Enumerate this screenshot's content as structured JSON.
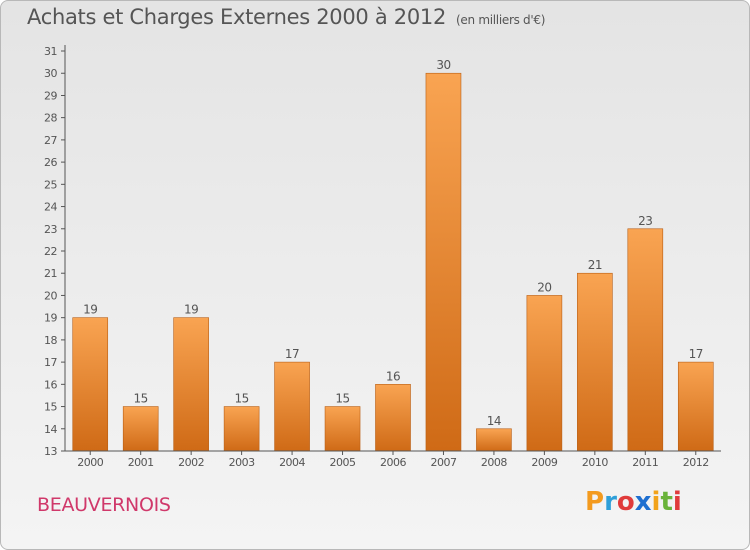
{
  "title": "Achats et Charges Externes 2000 à 2012",
  "unit": "(en milliers d'€)",
  "place": "BEAUVERNOIS",
  "logo": {
    "letters": [
      "P",
      "r",
      "o",
      "x",
      "i",
      "t",
      "i"
    ],
    "colors": [
      "#f39a1e",
      "#2e9fd9",
      "#e03b3b",
      "#1e6fd0",
      "#f2a31a",
      "#6ab33a",
      "#e03b3b"
    ]
  },
  "colors": {
    "bar_top": "#f9a452",
    "bar_bottom": "#cf6a16",
    "bar_edge": "#b85e14",
    "axis": "#555555",
    "text": "#555555"
  },
  "chart_data": {
    "type": "bar",
    "title": "Achats et Charges Externes 2000 à 2012",
    "subtitle": "(en milliers d'€)",
    "categories": [
      "2000",
      "2001",
      "2002",
      "2003",
      "2004",
      "2005",
      "2006",
      "2007",
      "2008",
      "2009",
      "2010",
      "2011",
      "2012"
    ],
    "values": [
      19,
      15,
      19,
      15,
      17,
      15,
      16,
      30,
      14,
      20,
      21,
      23,
      17
    ],
    "ylim": [
      13,
      31
    ],
    "yticks": [
      13,
      14,
      15,
      16,
      17,
      18,
      19,
      20,
      21,
      22,
      23,
      24,
      25,
      26,
      27,
      28,
      29,
      30,
      31
    ],
    "data_labels": true,
    "grid": false
  }
}
